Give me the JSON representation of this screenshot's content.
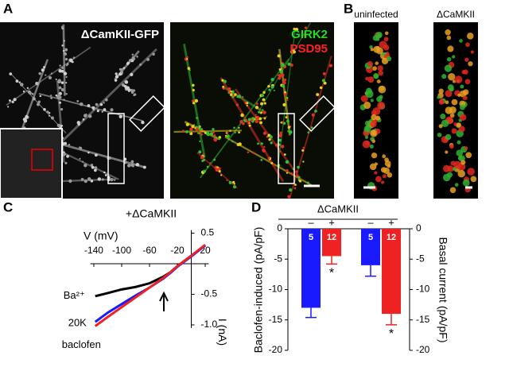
{
  "panel_labels": [
    "A",
    "B",
    "C",
    "D"
  ],
  "images": {
    "a_left": "ΔCamKII-GFP",
    "a_right_1": "GIRK2",
    "a_right_2": "PSD95",
    "b_left": "uninfected",
    "b_right": "ΔCaMKII"
  },
  "chart_data": [
    {
      "type": "line",
      "title": "+ΔCaMKII",
      "xlabel": "V (mV)",
      "ylabel": "I (nA)",
      "x": [
        -138,
        -120,
        -100,
        -80,
        -60,
        -40,
        -30,
        -20,
        0,
        20
      ],
      "series": [
        {
          "name": "Ba²⁺",
          "color": "#000000",
          "values": [
            -0.53,
            -0.48,
            -0.42,
            -0.38,
            -0.32,
            -0.21,
            -0.14,
            -0.04,
            0.13,
            0.3
          ]
        },
        {
          "name": "20K",
          "color": "#1a1aff",
          "values": [
            -0.95,
            -0.8,
            -0.66,
            -0.52,
            -0.39,
            -0.24,
            -0.15,
            -0.05,
            0.12,
            0.3
          ]
        },
        {
          "name": "baclofen",
          "color": "#ee2222",
          "values": [
            -1.02,
            -0.87,
            -0.71,
            -0.55,
            -0.39,
            -0.23,
            -0.14,
            -0.04,
            0.13,
            0.31
          ]
        }
      ],
      "xlim": [
        -145,
        25
      ],
      "xticks": [
        -140,
        -100,
        -60,
        -20,
        20
      ],
      "ylim": [
        -1.05,
        0.55
      ],
      "yticks": [
        0.5,
        0,
        -0.5,
        {
          "value": -1,
          "label": "-1.0"
        }
      ]
    },
    {
      "type": "bar",
      "group_label": "ΔCaMKII",
      "ylabel": "Baclofen-induced (pA/pF)",
      "y2label": "Basal current (pA/pF)",
      "categories": [
        "–",
        "+",
        "–",
        "+"
      ],
      "values": [
        -13,
        -4.5,
        -6,
        -14
      ],
      "errors": [
        1.6,
        1.3,
        1.8,
        1.8
      ],
      "colors": [
        "#1a1aff",
        "#ee2222",
        "#1a1aff",
        "#ee2222"
      ],
      "n_labels": [
        "5",
        "12",
        "5",
        "12"
      ],
      "significance": [
        null,
        "*",
        null,
        "*"
      ],
      "ylim": [
        -20,
        0
      ],
      "yticks": [
        0,
        -5,
        -10,
        -15,
        -20
      ],
      "y2lim": [
        -20,
        0
      ],
      "y2ticks": [
        0,
        -5,
        -10,
        -15,
        -20
      ]
    }
  ]
}
